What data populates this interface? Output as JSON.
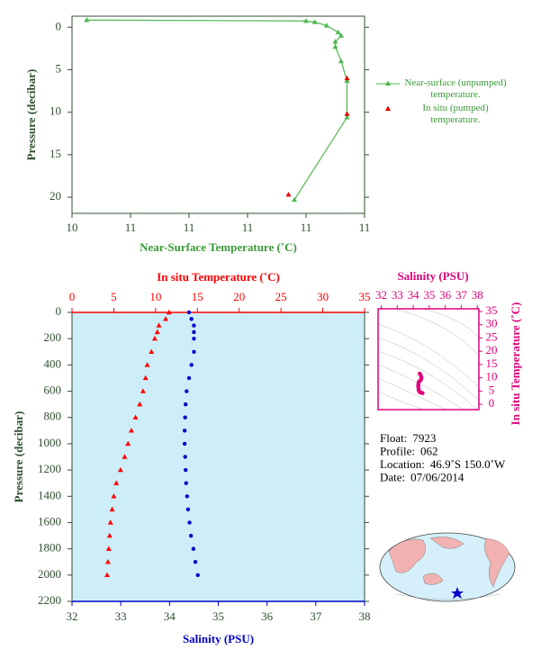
{
  "chart_data": [
    {
      "type": "line",
      "xlabel": "Near-Surface Temperature (˚C)",
      "ylabel": "Pressure (decibar)",
      "xlim": [
        10.4,
        11.4
      ],
      "xticks": [
        {
          "value": 10.4,
          "label": "10"
        },
        {
          "value": 10.6,
          "label": "11"
        },
        {
          "value": 10.8,
          "label": "11"
        },
        {
          "value": 11.0,
          "label": "11"
        },
        {
          "value": 11.2,
          "label": "11"
        },
        {
          "value": 11.4,
          "label": "11"
        }
      ],
      "ylim": [
        -1.3,
        21.9
      ],
      "y_inverted": true,
      "yticks": [
        0,
        5,
        10,
        15,
        20
      ],
      "series": [
        {
          "name": "Near-surface (unpumped) temperature.",
          "color": "#4cb84c",
          "line": true,
          "marker": "triangle",
          "values": [
            10.45,
            11.2,
            11.23,
            11.27,
            11.31,
            11.32,
            11.3,
            11.3,
            11.32,
            11.34,
            11.34,
            11.16
          ],
          "pressure": [
            -0.85,
            -0.74,
            -0.6,
            -0.2,
            0.6,
            1.0,
            1.7,
            2.3,
            4.0,
            6.3,
            10.6,
            20.3
          ]
        },
        {
          "name": "In situ (pumped) temperature.",
          "color": "#e00000",
          "line": false,
          "marker": "triangle",
          "values": [
            11.34,
            11.34,
            11.14
          ],
          "pressure": [
            6.0,
            10.2,
            19.7
          ]
        }
      ]
    },
    {
      "type": "profile",
      "xlabel": "Salinity (PSU)",
      "x2label": "In situ Temperature (˚C)",
      "ylabel": "Pressure (decibar)",
      "xlim": [
        32,
        38
      ],
      "xticks": [
        32,
        33,
        34,
        35,
        36,
        37,
        38
      ],
      "x2lim": [
        0,
        35
      ],
      "x2ticks": [
        0,
        5,
        10,
        15,
        20,
        25,
        30,
        35
      ],
      "ylim": [
        0,
        2200
      ],
      "y_inverted": true,
      "yticks": [
        0,
        200,
        400,
        600,
        800,
        1000,
        1200,
        1400,
        1600,
        1800,
        2000,
        2200
      ],
      "pressure": [
        0,
        50,
        100,
        150,
        200,
        300,
        400,
        500,
        600,
        700,
        800,
        900,
        1000,
        1100,
        1200,
        1300,
        1400,
        1500,
        1600,
        1700,
        1800,
        1900,
        2000
      ],
      "series": [
        {
          "name": "In situ Temperature",
          "axis": "x2",
          "color": "#ff0000",
          "marker": "triangle",
          "values": [
            11.6,
            11.2,
            10.4,
            10.2,
            9.9,
            9.5,
            9.0,
            8.8,
            8.5,
            8.1,
            7.6,
            7.1,
            6.7,
            6.3,
            5.8,
            5.3,
            5.0,
            4.8,
            4.6,
            4.5,
            4.4,
            4.3,
            4.2
          ]
        },
        {
          "name": "Salinity",
          "axis": "x",
          "color": "#0000cc",
          "marker": "circle",
          "values": [
            34.4,
            34.45,
            34.5,
            34.5,
            34.5,
            34.5,
            34.45,
            34.4,
            34.35,
            34.33,
            34.32,
            34.31,
            34.31,
            34.32,
            34.33,
            34.34,
            34.36,
            34.38,
            34.41,
            34.44,
            34.49,
            34.53,
            34.58
          ]
        }
      ]
    },
    {
      "type": "ts-diagram",
      "xlabel": "Salinity (PSU)",
      "ylabel": "In situ Temperature (˚C)",
      "color": "#e0007a",
      "xlim": [
        31.8,
        38.1
      ],
      "xticks": [
        32,
        33,
        34,
        35,
        36,
        37,
        38
      ],
      "ylim": [
        -2,
        36
      ],
      "yticks": [
        0,
        5,
        10,
        15,
        20,
        25,
        30,
        35
      ]
    }
  ],
  "info": [
    [
      "Float:",
      "7923"
    ],
    [
      "Profile:",
      "062"
    ],
    [
      "Location:",
      "46.9˚S  150.0˚W"
    ],
    [
      "Date:",
      "07/06/2014"
    ]
  ]
}
